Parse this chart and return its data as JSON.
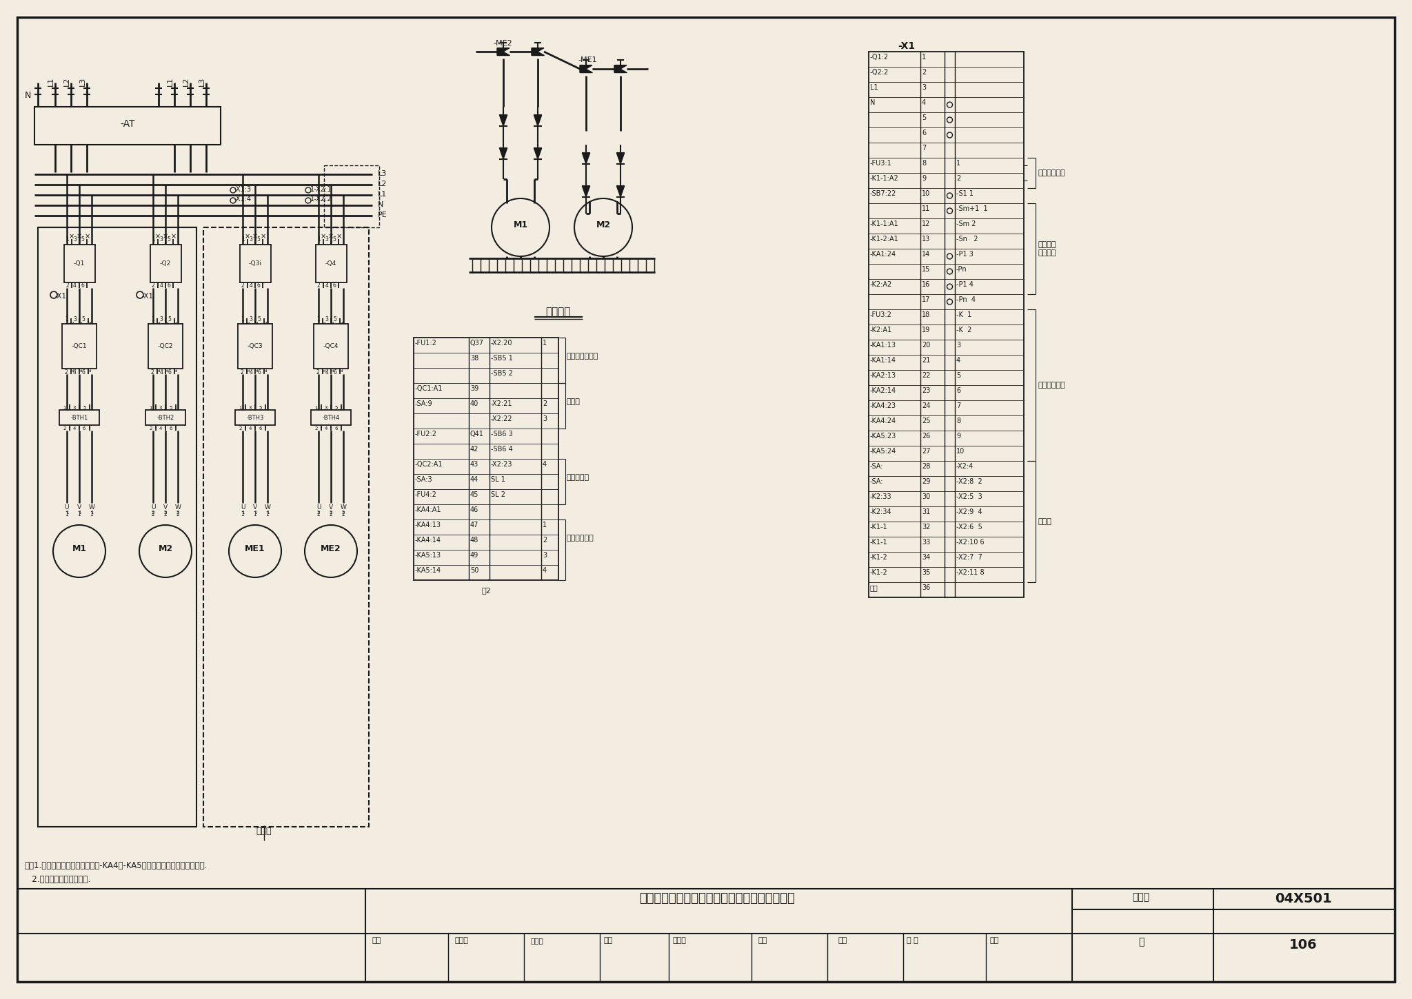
{
  "title": "消火栓泵一用一备全压起动工频巡检控制电路图",
  "page_num": "106",
  "atlas_num": "04X501",
  "bg_color": "#f2ede0",
  "line_color": "#1a1a1a",
  "note1": "注：1.当有值班室时此回路取消，-KA4，-KA5触点送至值班室内集中信号屏.",
  "note2": "   2.无值班室时此部分取消.",
  "water_sys_label": "水系统图",
  "label_xunjiangui": "巡检柜",
  "label_xiaofang_zhongxin": "消防中心联动台",
  "label_xunjianggui2": "巡检柜",
  "label_shuiwei": "水源液位计",
  "label_zhiban": "值班室信号屏",
  "label_zhu2": "注2",
  "label_xiaofang_guizi1": "消火栓箱",
  "label_xiaofang_guizi2": "消火栓箱",
  "label_xiaofang_kongzhi": "消防控制系统",
  "label_xiaofang_dianyuan": "消防系统电源",
  "label_xunjianggui3": "巡检柜",
  "x1_rows": [
    [
      "-Q1:2",
      "1",
      "",
      ""
    ],
    [
      "-Q2:2",
      "2",
      "",
      ""
    ],
    [
      "L1",
      "3",
      "",
      ""
    ],
    [
      "N",
      "4",
      "o",
      ""
    ],
    [
      "",
      "5",
      "o",
      ""
    ],
    [
      "",
      "6",
      "o",
      ""
    ],
    [
      "",
      "7",
      "",
      ""
    ],
    [
      "-FU3:1",
      "8",
      "",
      "1"
    ],
    [
      "-K1-1:A2",
      "9",
      "",
      "2"
    ],
    [
      "-SB7:22",
      "10",
      "o",
      "-S1 1"
    ],
    [
      "",
      "11",
      "o",
      "-Sm+1  1"
    ],
    [
      "-K1-1:A1",
      "12",
      "",
      "-Sm 2"
    ],
    [
      "-K1-2:A1",
      "13",
      "",
      "-Sn   2"
    ],
    [
      "-KA1:24",
      "14",
      "o",
      "-P1 3"
    ],
    [
      "",
      "15",
      "o",
      "-Pn"
    ],
    [
      "-K2:A2",
      "16",
      "o",
      "-P1 4"
    ],
    [
      "",
      "17",
      "o",
      "-Pn  4"
    ],
    [
      "-FU3:2",
      "18",
      "",
      "-K  1"
    ],
    [
      "-K2:A1",
      "19",
      "",
      "-K  2"
    ],
    [
      "-KA1:13",
      "20",
      "",
      "3"
    ],
    [
      "-KA1:14",
      "21",
      "",
      "4"
    ],
    [
      "-KA2:13",
      "22",
      "",
      "5"
    ],
    [
      "-KA2:14",
      "23",
      "",
      "6"
    ],
    [
      "-KA4:23",
      "24",
      "",
      "7"
    ],
    [
      "-KA4:24",
      "25",
      "",
      "8"
    ],
    [
      "-KA5:23",
      "26",
      "",
      "9"
    ],
    [
      "-KA5:24",
      "27",
      "",
      "10"
    ],
    [
      "-SA:",
      "28",
      "",
      "-X2:4"
    ],
    [
      "-SA:",
      "29",
      "",
      "-X2:8  2"
    ],
    [
      "-K2:33",
      "30",
      "",
      "-X2:5  3"
    ],
    [
      "-K2:34",
      "31",
      "",
      "-X2:9  4"
    ],
    [
      "-K1-1",
      "32",
      "",
      "-X2:6  5"
    ],
    [
      "-K1-1",
      "33",
      "",
      "-X2:10 6"
    ],
    [
      "-K1-2",
      "34",
      "",
      "-X2:7  7"
    ],
    [
      "-K1-2",
      "35",
      "",
      "-X2:11 8"
    ],
    [
      "备用",
      "36",
      "",
      ""
    ]
  ],
  "ctrl_rows": [
    [
      "-FU1:2",
      "Q37",
      "-X2:20",
      "1"
    ],
    [
      "",
      "38",
      "-SB5 1",
      ""
    ],
    [
      "",
      "",
      "-SB5 2",
      ""
    ],
    [
      "-QC1:A1",
      "39",
      "",
      ""
    ],
    [
      "-SA:9",
      "40",
      "-X2:21",
      "2"
    ],
    [
      "",
      "",
      "-X2:22",
      "3"
    ],
    [
      "-FU2:2",
      "Q41",
      "-SB6 3",
      ""
    ],
    [
      "",
      "42",
      "-SB6 4",
      ""
    ],
    [
      "-QC2:A1",
      "43",
      "-X2:23",
      "4"
    ],
    [
      "-SA:3",
      "44",
      "SL 1",
      ""
    ],
    [
      "-FU4:2",
      "45",
      "SL 2",
      ""
    ],
    [
      "-KA4:A1",
      "46",
      "",
      ""
    ],
    [
      "-KA4:13",
      "47",
      "",
      "1"
    ],
    [
      "-KA4:14",
      "48",
      "",
      "2"
    ],
    [
      "-KA5:13",
      "49",
      "",
      "3"
    ],
    [
      "-KA5:14",
      "50",
      "",
      "4"
    ]
  ]
}
